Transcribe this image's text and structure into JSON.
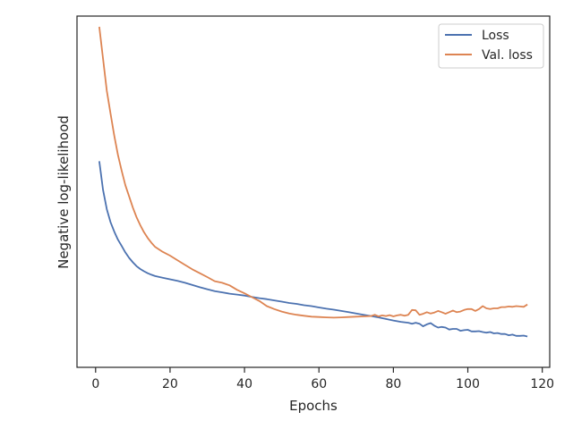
{
  "chart_data": {
    "type": "line",
    "title": "",
    "xlabel": "Epochs",
    "ylabel": "Negative log-likelihood",
    "xlim": [
      -5,
      122
    ],
    "ylim": [
      0,
      1
    ],
    "xticks": [
      0,
      20,
      40,
      60,
      80,
      100,
      120
    ],
    "yticks_labeled": false,
    "grid": false,
    "legend": "top-right",
    "series": [
      {
        "name": "Loss",
        "color": "#4c72b0",
        "x": [
          1,
          2,
          3,
          4,
          5,
          6,
          7,
          8,
          9,
          10,
          11,
          12,
          13,
          14,
          15,
          16,
          18,
          20,
          22,
          24,
          26,
          28,
          30,
          32,
          34,
          36,
          38,
          40,
          42,
          44,
          46,
          48,
          50,
          52,
          54,
          56,
          58,
          60,
          62,
          64,
          66,
          68,
          70,
          72,
          74,
          76,
          78,
          80,
          82,
          84,
          85,
          86,
          87,
          88,
          89,
          90,
          91,
          92,
          93,
          94,
          95,
          96,
          97,
          98,
          99,
          100,
          101,
          102,
          103,
          104,
          105,
          106,
          107,
          108,
          109,
          110,
          111,
          112,
          113,
          114,
          115,
          116
        ],
        "y": [
          0.58,
          0.49,
          0.43,
          0.39,
          0.36,
          0.335,
          0.315,
          0.295,
          0.278,
          0.264,
          0.252,
          0.243,
          0.236,
          0.23,
          0.225,
          0.221,
          0.216,
          0.211,
          0.206,
          0.2,
          0.193,
          0.186,
          0.18,
          0.174,
          0.17,
          0.166,
          0.163,
          0.16,
          0.156,
          0.152,
          0.149,
          0.145,
          0.141,
          0.137,
          0.134,
          0.13,
          0.127,
          0.123,
          0.119,
          0.116,
          0.112,
          0.108,
          0.104,
          0.1,
          0.096,
          0.092,
          0.087,
          0.082,
          0.078,
          0.075,
          0.072,
          0.075,
          0.072,
          0.064,
          0.07,
          0.074,
          0.066,
          0.06,
          0.062,
          0.06,
          0.054,
          0.056,
          0.056,
          0.05,
          0.052,
          0.053,
          0.048,
          0.048,
          0.049,
          0.046,
          0.044,
          0.046,
          0.042,
          0.043,
          0.04,
          0.04,
          0.036,
          0.038,
          0.034,
          0.034,
          0.035,
          0.032
        ]
      },
      {
        "name": "Val. loss",
        "color": "#dd8452",
        "x": [
          1,
          2,
          3,
          4,
          5,
          6,
          7,
          8,
          9,
          10,
          11,
          12,
          13,
          14,
          15,
          16,
          18,
          20,
          22,
          24,
          26,
          28,
          30,
          32,
          34,
          36,
          38,
          40,
          42,
          44,
          46,
          48,
          50,
          52,
          54,
          56,
          58,
          60,
          62,
          64,
          66,
          68,
          70,
          72,
          74,
          75,
          76,
          77,
          78,
          79,
          80,
          81,
          82,
          83,
          84,
          85,
          86,
          87,
          88,
          89,
          90,
          91,
          92,
          93,
          94,
          95,
          96,
          97,
          98,
          99,
          100,
          101,
          102,
          103,
          104,
          105,
          106,
          107,
          108,
          109,
          110,
          111,
          112,
          113,
          114,
          115,
          116
        ],
        "y": [
          1.0,
          0.9,
          0.8,
          0.73,
          0.66,
          0.6,
          0.55,
          0.505,
          0.47,
          0.435,
          0.405,
          0.38,
          0.358,
          0.34,
          0.325,
          0.312,
          0.297,
          0.285,
          0.27,
          0.256,
          0.242,
          0.23,
          0.218,
          0.205,
          0.2,
          0.192,
          0.178,
          0.167,
          0.155,
          0.143,
          0.127,
          0.118,
          0.11,
          0.104,
          0.1,
          0.097,
          0.094,
          0.093,
          0.092,
          0.091,
          0.092,
          0.093,
          0.094,
          0.095,
          0.096,
          0.1,
          0.095,
          0.098,
          0.096,
          0.099,
          0.095,
          0.098,
          0.1,
          0.097,
          0.1,
          0.115,
          0.114,
          0.1,
          0.103,
          0.108,
          0.104,
          0.107,
          0.112,
          0.108,
          0.103,
          0.108,
          0.113,
          0.108,
          0.11,
          0.115,
          0.118,
          0.118,
          0.112,
          0.118,
          0.127,
          0.12,
          0.118,
          0.12,
          0.12,
          0.124,
          0.124,
          0.126,
          0.125,
          0.127,
          0.126,
          0.125,
          0.132
        ]
      }
    ]
  }
}
